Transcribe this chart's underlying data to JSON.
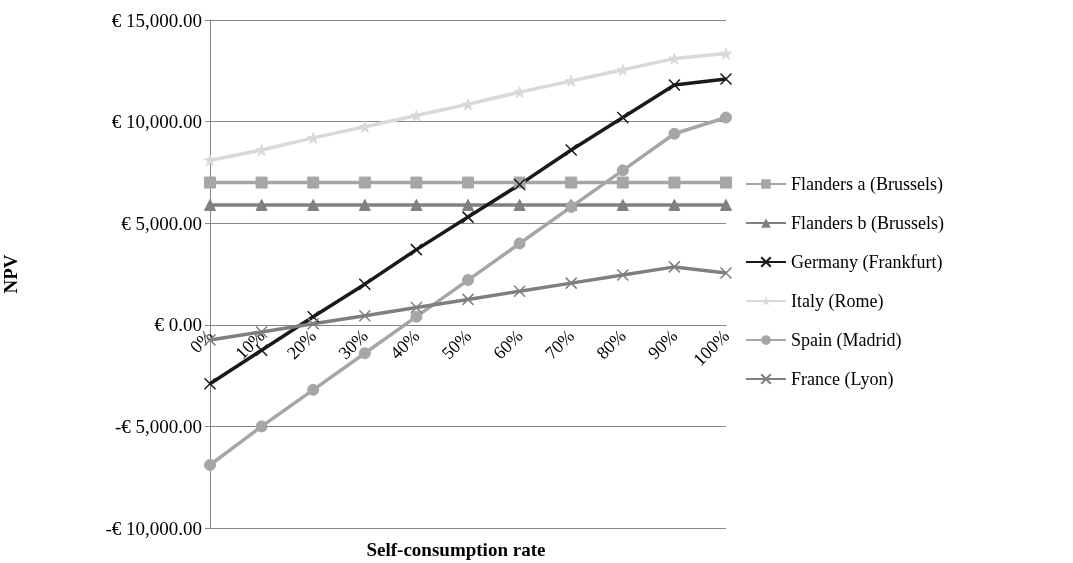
{
  "chart_data": {
    "type": "line",
    "xlabel": "Self-consumption rate",
    "ylabel": "NPV",
    "categories": [
      "0%",
      "10%",
      "20%",
      "30%",
      "40%",
      "50%",
      "60%",
      "70%",
      "80%",
      "90%",
      "100%"
    ],
    "series": [
      {
        "name": "Flanders a (Brussels)",
        "color": "#a6a6a6",
        "marker": "square",
        "values": [
          7000,
          7000,
          7000,
          7000,
          7000,
          7000,
          7000,
          7000,
          7000,
          7000,
          7000
        ]
      },
      {
        "name": "Flanders b (Brussels)",
        "color": "#808080",
        "marker": "triangle",
        "values": [
          5900,
          5900,
          5900,
          5900,
          5900,
          5900,
          5900,
          5900,
          5900,
          5900,
          5900
        ]
      },
      {
        "name": "Germany (Frankfurt)",
        "color": "#1a1a1a",
        "marker": "cross",
        "values": [
          -2900,
          -1250,
          400,
          2000,
          3700,
          5300,
          6900,
          8600,
          10200,
          11800,
          12100
        ]
      },
      {
        "name": "Italy (Rome)",
        "color": "#d9d9d9",
        "marker": "star",
        "values": [
          8100,
          8600,
          9200,
          9750,
          10300,
          10850,
          11450,
          12000,
          12550,
          13100,
          13350
        ]
      },
      {
        "name": "Spain (Madrid)",
        "color": "#a6a6a6",
        "marker": "circle",
        "values": [
          -6900,
          -5000,
          -3200,
          -1400,
          400,
          2200,
          4000,
          5800,
          7600,
          9400,
          10200
        ]
      },
      {
        "name": "France (Lyon)",
        "color": "#7f7f7f",
        "marker": "cross",
        "values": [
          -750,
          -350,
          50,
          450,
          850,
          1250,
          1650,
          2050,
          2450,
          2850,
          2550
        ]
      }
    ],
    "ylim": [
      -10000,
      15000
    ],
    "yticks": [
      {
        "value": -10000,
        "label": "-€ 10,000.00"
      },
      {
        "value": -5000,
        "label": "-€ 5,000.00"
      },
      {
        "value": 0,
        "label": "€ 0.00"
      },
      {
        "value": 5000,
        "label": "€ 5,000.00"
      },
      {
        "value": 10000,
        "label": "€ 10,000.00"
      },
      {
        "value": 15000,
        "label": "€ 15,000.00"
      }
    ],
    "grid": "y",
    "legend": "right"
  }
}
